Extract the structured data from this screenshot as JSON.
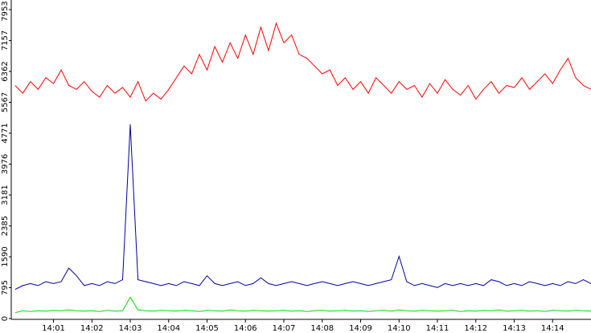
{
  "chart_data": {
    "type": "line",
    "x": [
      840.0,
      840.2,
      840.4,
      840.6,
      840.8,
      841.0,
      841.2,
      841.4,
      841.6,
      841.8,
      842.0,
      842.2,
      842.4,
      842.6,
      842.8,
      843.0,
      843.2,
      843.4,
      843.6,
      843.8,
      844.0,
      844.2,
      844.4,
      844.6,
      844.8,
      845.0,
      845.2,
      845.4,
      845.6,
      845.8,
      846.0,
      846.2,
      846.4,
      846.6,
      846.8,
      847.0,
      847.2,
      847.4,
      847.6,
      847.8,
      848.0,
      848.2,
      848.4,
      848.6,
      848.8,
      849.0,
      849.2,
      849.4,
      849.6,
      849.8,
      850.0,
      850.2,
      850.4,
      850.6,
      850.8,
      851.0,
      851.2,
      851.4,
      851.6,
      851.8,
      852.0,
      852.2,
      852.4,
      852.6,
      852.8,
      853.0,
      853.2,
      853.4,
      853.6,
      853.8,
      854.0,
      854.2,
      854.4,
      854.6,
      854.8,
      855.0
    ],
    "series": [
      {
        "color": "#ff0000",
        "values": [
          6000,
          5800,
          6100,
          5900,
          6200,
          6050,
          6400,
          6000,
          5900,
          6100,
          5850,
          5700,
          6000,
          5800,
          5950,
          5700,
          6100,
          5600,
          5800,
          5650,
          5900,
          6200,
          6500,
          6300,
          6800,
          6400,
          7000,
          6600,
          7100,
          6700,
          7300,
          6800,
          7500,
          6900,
          7600,
          7100,
          7300,
          6800,
          6700,
          6500,
          6300,
          6400,
          6000,
          6200,
          5900,
          6100,
          5800,
          6200,
          6000,
          5800,
          6100,
          5900,
          6000,
          5700,
          6050,
          5800,
          6150,
          5900,
          5750,
          6000,
          5650,
          5900,
          6100,
          5800,
          6000,
          5950,
          6200,
          5900,
          6100,
          6300,
          6050,
          6400,
          6700,
          6200,
          6000,
          5900
        ]
      },
      {
        "color": "#0000a0",
        "values": [
          750,
          850,
          900,
          850,
          950,
          900,
          950,
          1300,
          1100,
          850,
          900,
          850,
          950,
          900,
          1000,
          5000,
          1000,
          950,
          900,
          850,
          900,
          850,
          950,
          900,
          850,
          1100,
          900,
          850,
          900,
          950,
          850,
          900,
          1050,
          900,
          850,
          900,
          950,
          900,
          850,
          900,
          950,
          900,
          850,
          900,
          950,
          900,
          850,
          900,
          950,
          1000,
          1600,
          950,
          850,
          900,
          850,
          800,
          900,
          850,
          900,
          850,
          900,
          850,
          1000,
          950,
          850,
          900,
          850,
          950,
          900,
          850,
          900,
          850,
          950,
          900,
          1000,
          900
        ]
      },
      {
        "color": "#00dd00",
        "values": [
          150,
          200,
          180,
          200,
          190,
          210,
          200,
          220,
          200,
          190,
          200,
          180,
          210,
          190,
          200,
          550,
          220,
          200,
          190,
          210,
          200,
          190,
          210,
          200,
          180,
          210,
          200,
          190,
          220,
          200,
          190,
          210,
          200,
          190,
          200,
          210,
          190,
          200,
          180,
          200,
          210,
          190,
          200,
          210,
          190,
          200,
          180,
          200,
          210,
          190,
          220,
          200,
          190,
          210,
          200,
          190,
          200,
          210,
          180,
          200,
          190,
          210,
          200,
          220,
          190,
          200,
          210,
          190,
          200,
          180,
          210,
          200,
          190,
          210,
          200,
          190
        ]
      }
    ],
    "xlim": [
      839.9,
      855
    ],
    "xticks": [
      {
        "value": 841,
        "label": "14:01"
      },
      {
        "value": 842,
        "label": "14:02"
      },
      {
        "value": 843,
        "label": "14:03"
      },
      {
        "value": 844,
        "label": "14:04"
      },
      {
        "value": 845,
        "label": "14:05"
      },
      {
        "value": 846,
        "label": "14:06"
      },
      {
        "value": 847,
        "label": "14:07"
      },
      {
        "value": 848,
        "label": "14:08"
      },
      {
        "value": 849,
        "label": "14:09"
      },
      {
        "value": 850,
        "label": "14:10"
      },
      {
        "value": 851,
        "label": "14:11"
      },
      {
        "value": 852,
        "label": "14:12"
      },
      {
        "value": 853,
        "label": "14:13"
      },
      {
        "value": 854,
        "label": "14:14"
      }
    ],
    "ylim": [
      0,
      7953
    ],
    "yticks": [
      0,
      795,
      1590,
      2385,
      3181,
      3976,
      4771,
      5567,
      6362,
      7157,
      7953
    ],
    "grid": false
  }
}
